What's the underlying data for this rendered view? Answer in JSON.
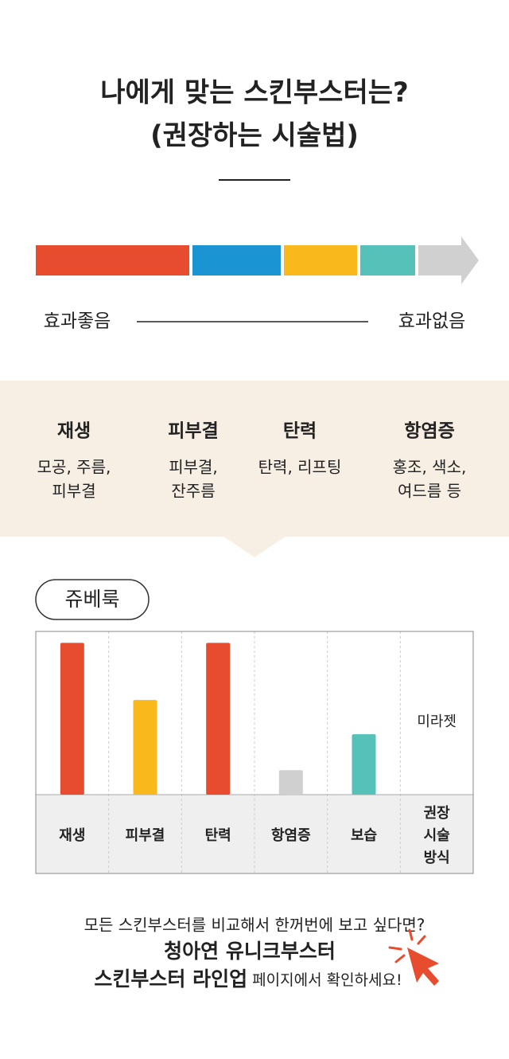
{
  "title": [
    "나에게 맞는 스킨부스터는?",
    "(권장하는 시술법)"
  ],
  "scale": {
    "colors": [
      "#e84c2e",
      "#1a94d2",
      "#f9b81c",
      "#56c1b9",
      "#d1d0d0"
    ],
    "left_label": "효과좋음",
    "right_label": "효과없음"
  },
  "effects": [
    {
      "name": "재생",
      "desc": [
        "모공, 주름,",
        "피부결"
      ]
    },
    {
      "name": "피부결",
      "desc": [
        "피부결,",
        "잔주름"
      ]
    },
    {
      "name": "탄력",
      "desc": [
        "탄력, 리프팅"
      ]
    },
    {
      "name": "항염증",
      "desc": [
        "홍조, 색소,",
        "여드름 등"
      ]
    }
  ],
  "chart_data": {
    "type": "bar",
    "title": "쥬베룩",
    "categories": [
      "재생",
      "피부결",
      "탄력",
      "항염증",
      "보습"
    ],
    "values": [
      93,
      58,
      93,
      15,
      37
    ],
    "colors": [
      "#e84c2e",
      "#f9b81c",
      "#e84c2e",
      "#d1d0d0",
      "#56c1b9"
    ],
    "ylim": [
      0,
      100
    ],
    "method_label": [
      "권장",
      "시술",
      "방식"
    ],
    "method": "미라젯"
  },
  "footer": {
    "line1": "모든 스킨부스터를 비교해서 한꺼번에 보고 싶다면?",
    "line2": "청아연 유니크부스터",
    "line3_bold": "스킨부스터 라인업",
    "line3": " 페이지에서 확인하세요!"
  }
}
